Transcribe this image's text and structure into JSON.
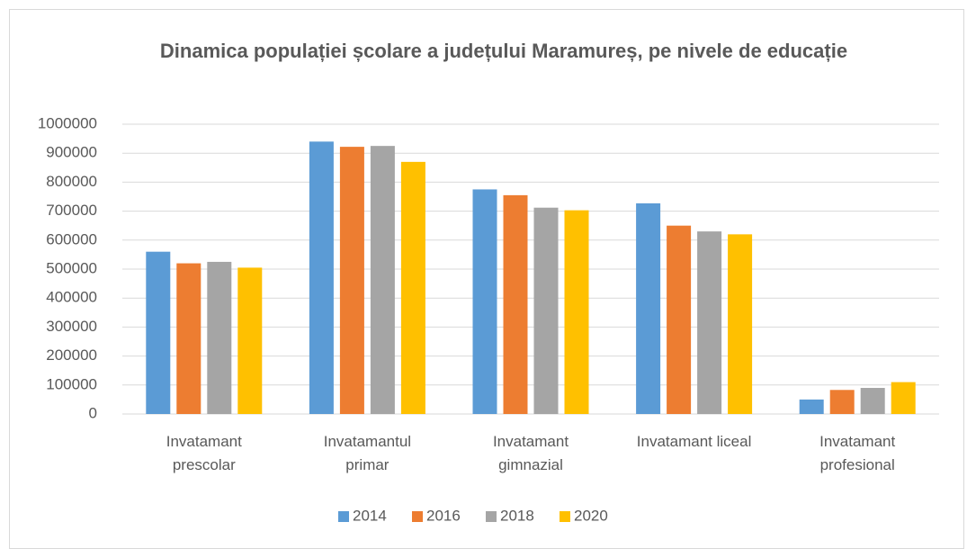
{
  "chart_data": {
    "type": "bar",
    "title": "Dinamica populației școlare a județului Maramureș, pe nivele de educație",
    "categories": [
      "Invatamant prescolar",
      "Invatamantul primar",
      "Invatamant gimnazial",
      "Invatamant liceal",
      "Invatamant profesional"
    ],
    "series": [
      {
        "name": "2014",
        "color": "#5b9bd5",
        "values": [
          560000,
          940000,
          775000,
          727000,
          50000
        ]
      },
      {
        "name": "2016",
        "color": "#ed7d31",
        "values": [
          520000,
          922000,
          755000,
          650000,
          83000
        ]
      },
      {
        "name": "2018",
        "color": "#a5a5a5",
        "values": [
          525000,
          925000,
          712000,
          630000,
          90000
        ]
      },
      {
        "name": "2020",
        "color": "#ffc000",
        "values": [
          505000,
          870000,
          703000,
          620000,
          110000
        ]
      }
    ],
    "ylim": [
      0,
      1000000
    ],
    "yticks": [
      0,
      100000,
      200000,
      300000,
      400000,
      500000,
      600000,
      700000,
      800000,
      900000,
      1000000
    ],
    "grid": true,
    "legend": "bottom"
  }
}
